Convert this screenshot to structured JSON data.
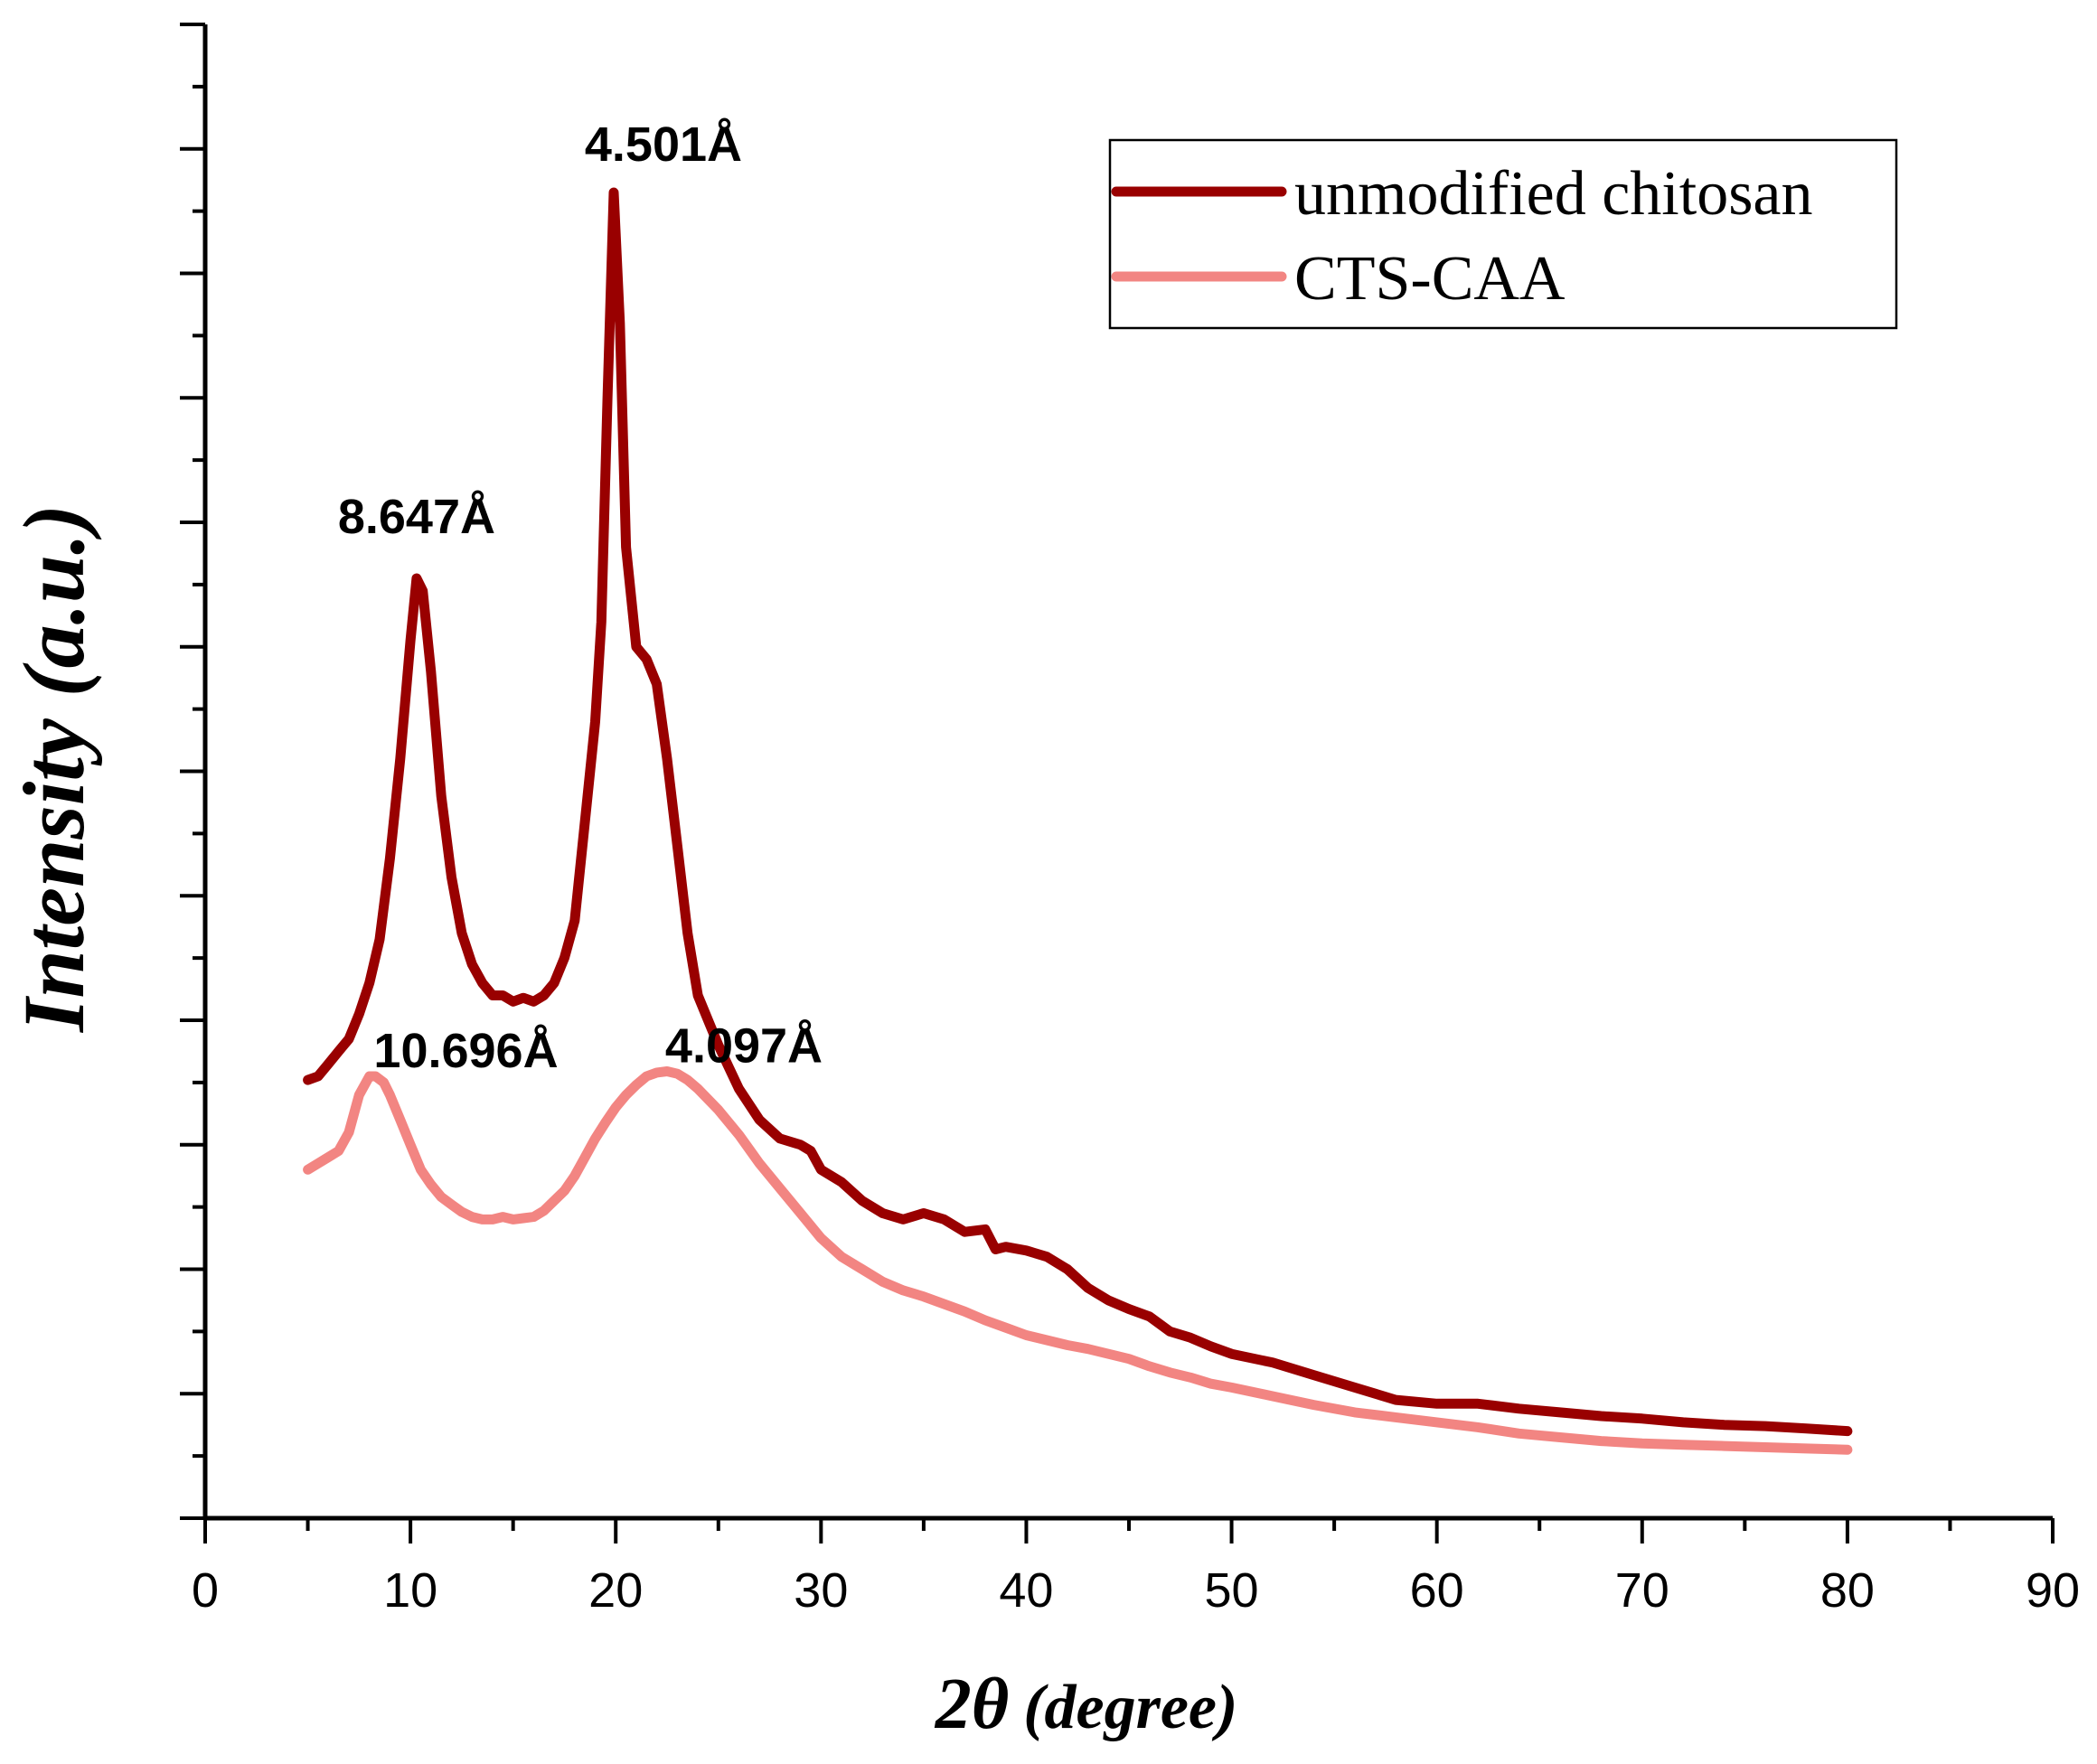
{
  "chart_data": {
    "type": "line",
    "title": "",
    "xlabel_main": "2θ",
    "xlabel_unit": "(degree)",
    "ylabel": "Intensity (a.u.)",
    "xlim": [
      0,
      90
    ],
    "ylim": [
      0,
      120
    ],
    "x_ticks": [
      0,
      10,
      20,
      30,
      40,
      50,
      60,
      70,
      80,
      90
    ],
    "x_tick_labels": [
      "0",
      "10",
      "20",
      "30",
      "40",
      "50",
      "60",
      "70",
      "80",
      "90"
    ],
    "y_tick_labels_shown": false,
    "grid": false,
    "legend_position": "top-right",
    "series": [
      {
        "name": "unmodified chitosan",
        "color": "#990000",
        "points": [
          [
            5,
            35.2
          ],
          [
            5.5,
            35.5
          ],
          [
            6,
            36.5
          ],
          [
            6.5,
            37.5
          ],
          [
            7,
            38.5
          ],
          [
            7.5,
            40.5
          ],
          [
            8,
            43
          ],
          [
            8.5,
            46.5
          ],
          [
            9,
            53
          ],
          [
            9.5,
            61
          ],
          [
            10,
            70.5
          ],
          [
            10.3,
            75.5
          ],
          [
            10.6,
            74.5
          ],
          [
            11,
            68
          ],
          [
            11.5,
            58
          ],
          [
            12,
            51.5
          ],
          [
            12.5,
            47
          ],
          [
            13,
            44.5
          ],
          [
            13.5,
            43
          ],
          [
            14,
            42
          ],
          [
            14.5,
            42
          ],
          [
            15,
            41.5
          ],
          [
            15.5,
            41.8
          ],
          [
            16,
            41.5
          ],
          [
            16.5,
            42
          ],
          [
            17,
            43
          ],
          [
            17.5,
            45
          ],
          [
            18,
            48
          ],
          [
            18.5,
            56
          ],
          [
            19,
            64
          ],
          [
            19.3,
            72
          ],
          [
            19.6,
            90
          ],
          [
            19.9,
            106.5
          ],
          [
            20.2,
            96
          ],
          [
            20.5,
            78
          ],
          [
            21,
            70
          ],
          [
            21.5,
            69
          ],
          [
            22,
            67
          ],
          [
            22.5,
            61
          ],
          [
            23,
            54
          ],
          [
            23.5,
            47
          ],
          [
            24,
            42
          ],
          [
            24.5,
            40
          ],
          [
            25,
            38
          ],
          [
            26,
            34.5
          ],
          [
            27,
            32
          ],
          [
            28,
            30.5
          ],
          [
            29,
            30
          ],
          [
            29.5,
            29.5
          ],
          [
            30,
            28
          ],
          [
            31,
            27
          ],
          [
            32,
            25.5
          ],
          [
            33,
            24.5
          ],
          [
            34,
            24
          ],
          [
            35,
            24.5
          ],
          [
            36,
            24
          ],
          [
            37,
            23
          ],
          [
            38,
            23.2
          ],
          [
            38.5,
            21.6
          ],
          [
            39,
            21.8
          ],
          [
            40,
            21.5
          ],
          [
            41,
            21
          ],
          [
            42,
            20
          ],
          [
            43,
            18.5
          ],
          [
            44,
            17.5
          ],
          [
            45,
            16.8
          ],
          [
            46,
            16.2
          ],
          [
            47,
            15
          ],
          [
            48,
            14.5
          ],
          [
            49,
            13.8
          ],
          [
            50,
            13.2
          ],
          [
            52,
            12.5
          ],
          [
            54,
            11.5
          ],
          [
            56,
            10.5
          ],
          [
            58,
            9.5
          ],
          [
            60,
            9.2
          ],
          [
            62,
            9.2
          ],
          [
            64,
            8.8
          ],
          [
            66,
            8.5
          ],
          [
            68,
            8.2
          ],
          [
            70,
            8
          ],
          [
            72,
            7.7
          ],
          [
            74,
            7.5
          ],
          [
            76,
            7.4
          ],
          [
            78,
            7.2
          ],
          [
            80,
            7
          ]
        ]
      },
      {
        "name": "CTS-CAA",
        "color": "#f28582",
        "points": [
          [
            5,
            28
          ],
          [
            5.5,
            28.5
          ],
          [
            6,
            29
          ],
          [
            6.5,
            29.5
          ],
          [
            7,
            31
          ],
          [
            7.5,
            34
          ],
          [
            8,
            35.5
          ],
          [
            8.3,
            35.5
          ],
          [
            8.7,
            35
          ],
          [
            9,
            34
          ],
          [
            9.5,
            32
          ],
          [
            10,
            30
          ],
          [
            10.5,
            28
          ],
          [
            11,
            26.8
          ],
          [
            11.5,
            25.8
          ],
          [
            12,
            25.2
          ],
          [
            12.5,
            24.6
          ],
          [
            13,
            24.2
          ],
          [
            13.5,
            24
          ],
          [
            14,
            24
          ],
          [
            14.5,
            24.2
          ],
          [
            15,
            24
          ],
          [
            15.5,
            24.1
          ],
          [
            16,
            24.2
          ],
          [
            16.5,
            24.7
          ],
          [
            17,
            25.5
          ],
          [
            17.5,
            26.3
          ],
          [
            18,
            27.5
          ],
          [
            18.5,
            29
          ],
          [
            19,
            30.5
          ],
          [
            19.5,
            31.8
          ],
          [
            20,
            33
          ],
          [
            20.5,
            34
          ],
          [
            21,
            34.8
          ],
          [
            21.5,
            35.5
          ],
          [
            22,
            35.8
          ],
          [
            22.5,
            35.9
          ],
          [
            23,
            35.7
          ],
          [
            23.5,
            35.2
          ],
          [
            24,
            34.5
          ],
          [
            25,
            32.8
          ],
          [
            26,
            30.8
          ],
          [
            27,
            28.5
          ],
          [
            28,
            26.5
          ],
          [
            29,
            24.5
          ],
          [
            30,
            22.5
          ],
          [
            31,
            21
          ],
          [
            32,
            20
          ],
          [
            33,
            19
          ],
          [
            34,
            18.3
          ],
          [
            35,
            17.8
          ],
          [
            36,
            17.2
          ],
          [
            37,
            16.6
          ],
          [
            38,
            15.9
          ],
          [
            39,
            15.3
          ],
          [
            40,
            14.7
          ],
          [
            41,
            14.3
          ],
          [
            42,
            13.9
          ],
          [
            43,
            13.6
          ],
          [
            44,
            13.2
          ],
          [
            45,
            12.8
          ],
          [
            46,
            12.2
          ],
          [
            47,
            11.7
          ],
          [
            48,
            11.3
          ],
          [
            49,
            10.8
          ],
          [
            50,
            10.5
          ],
          [
            52,
            9.8
          ],
          [
            54,
            9.1
          ],
          [
            56,
            8.5
          ],
          [
            58,
            8.1
          ],
          [
            60,
            7.7
          ],
          [
            62,
            7.3
          ],
          [
            64,
            6.8
          ],
          [
            66,
            6.5
          ],
          [
            68,
            6.2
          ],
          [
            70,
            6
          ],
          [
            72,
            5.9
          ],
          [
            74,
            5.8
          ],
          [
            76,
            5.7
          ],
          [
            78,
            5.6
          ],
          [
            80,
            5.5
          ]
        ]
      }
    ],
    "annotations": [
      {
        "text": "8.647Å",
        "x": 10.3,
        "y": 75.5,
        "series": "unmodified chitosan"
      },
      {
        "text": "4.501Å",
        "x": 19.9,
        "y": 106.5,
        "series": "unmodified chitosan"
      },
      {
        "text": "10.696Å",
        "x": 8.3,
        "y": 35.5,
        "series": "CTS-CAA"
      },
      {
        "text": "4.097Å",
        "x": 22.5,
        "y": 35.9,
        "series": "CTS-CAA"
      }
    ]
  }
}
